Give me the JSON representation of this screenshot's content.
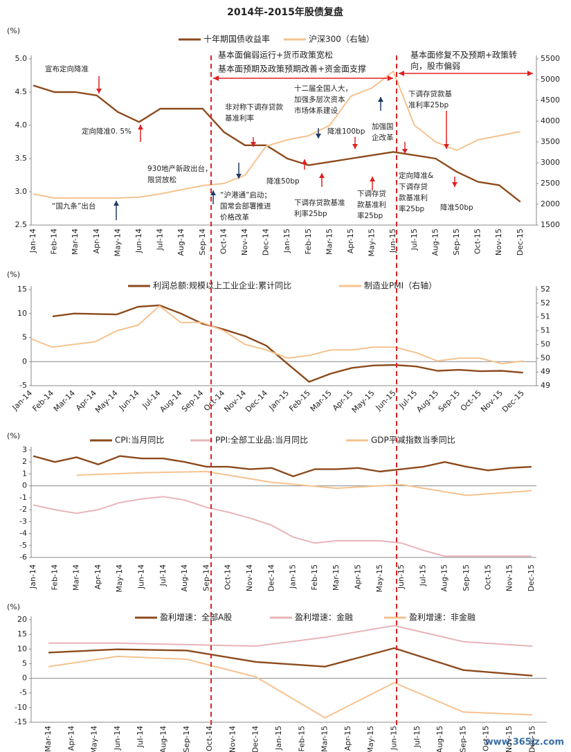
{
  "title": "2014年-2015年股债复盘",
  "watermark": "www.365jz.com",
  "chart_data": [
    {
      "type": "line",
      "y_label": "(%)",
      "categories": [
        "Jan-14",
        "Feb-14",
        "Mar-14",
        "Apr-14",
        "May-14",
        "Jun-14",
        "Jul-14",
        "Aug-14",
        "Sep-14",
        "Oct-14",
        "Nov-14",
        "Dec-14",
        "Jan-15",
        "Feb-15",
        "Mar-15",
        "Apr-15",
        "May-15",
        "Jun-15",
        "Jul-15",
        "Aug-15",
        "Sep-15",
        "Oct-15",
        "Nov-15",
        "Dec-15"
      ],
      "ylim": [
        2.5,
        5.0
      ],
      "yticks": [
        2.5,
        {
          "value": 3,
          "label": "3.0"
        },
        3.5,
        {
          "value": 4,
          "label": "4.0"
        },
        4.5,
        {
          "value": 5,
          "label": "5.0"
        }
      ],
      "y2lim": [
        1500,
        5500
      ],
      "y2ticks": [
        1500,
        2000,
        2500,
        3000,
        3500,
        4000,
        4500,
        5000,
        5500
      ],
      "series": [
        {
          "name": "十年期国债收益率",
          "color": "#8c4a1c",
          "values": [
            4.6,
            4.5,
            4.5,
            4.45,
            4.2,
            4.05,
            4.25,
            4.25,
            4.25,
            3.9,
            3.7,
            3.7,
            3.5,
            3.4,
            3.45,
            3.5,
            3.55,
            3.6,
            3.55,
            3.5,
            3.3,
            3.15,
            3.1,
            2.85
          ]
        },
        {
          "name": "沪深300（右轴）",
          "color": "#f6c28e",
          "axis": "y2",
          "values": [
            2250,
            2150,
            2150,
            2150,
            2150,
            2170,
            2250,
            2350,
            2450,
            2500,
            2700,
            3400,
            3550,
            3650,
            3900,
            4600,
            4800,
            5200,
            3900,
            3500,
            3300,
            3550,
            3650,
            3750
          ]
        }
      ],
      "annotations": [
        [
          "宣布定向降准"
        ],
        [
          "定向降准0. 5%"
        ],
        [
          "930地产新政出台，",
          "限贷放松"
        ],
        [
          "“国九条”出台"
        ],
        [
          "非对称下调存贷款",
          "基准利率"
        ],
        [
          "“沪港通”启动；",
          "国常会部署推进",
          "价格改革"
        ],
        [
          "降准50bp"
        ],
        [
          "下调存贷款基准",
          "利率25bp"
        ],
        [
          "降准100bp"
        ],
        [
          "十二届全国人大，",
          "加强多层次资本",
          "市场体系建设"
        ],
        [
          "下调存贷",
          "款基准利",
          "率25bp"
        ],
        [
          "加强国",
          "企改革"
        ],
        [
          "基本面偏弱运行+货币政策宽松"
        ],
        [
          "基本面预期及政策预期改善+资金面支撑"
        ],
        [
          "基本面修复不及预期+政策转",
          "向，股市偏弱"
        ],
        [
          "下调存贷款基",
          "准利率25bp"
        ],
        [
          "定向降准&",
          "下调存贷",
          "款基准利",
          "率25bp"
        ],
        [
          "降准50bp"
        ]
      ]
    },
    {
      "type": "line",
      "y_label": "(%)",
      "categories": [
        "Jan-14",
        "Feb-14",
        "Mar-14",
        "Apr-14",
        "May-14",
        "Jun-14",
        "Jul-14",
        "Aug-14",
        "Sep-14",
        "Oct-14",
        "Nov-14",
        "Dec-14",
        "Jan-15",
        "Feb-15",
        "Mar-15",
        "Apr-15",
        "May-15",
        "Jun-15",
        "Jul-15",
        "Aug-15",
        "Sep-15",
        "Oct-15",
        "Nov-15",
        "Dec-15"
      ],
      "ylim": [
        -5,
        15
      ],
      "yticks": [
        -5,
        0,
        5,
        10,
        15
      ],
      "y2lim": [
        48.8,
        52.3
      ],
      "y2ticks": [
        {
          "value": 48.8,
          "label": "49"
        },
        {
          "value": 49.3,
          "label": "49"
        },
        {
          "value": 49.8,
          "label": "50"
        },
        {
          "value": 50.3,
          "label": "50"
        },
        {
          "value": 50.8,
          "label": "51"
        },
        {
          "value": 51.3,
          "label": "51"
        },
        {
          "value": 51.8,
          "label": "52"
        },
        {
          "value": 52.3,
          "label": "52"
        }
      ],
      "series": [
        {
          "name": "利润总额:规模以上工业企业:累计同比",
          "color": "#8c4a1c",
          "values": [
            null,
            9.4,
            10,
            9.9,
            9.8,
            11.4,
            11.7,
            10,
            7.9,
            6.7,
            5.3,
            3.3,
            -0.5,
            -4.2,
            -2.5,
            -1.3,
            -0.8,
            -0.7,
            -1,
            -1.9,
            -1.7,
            -2,
            -1.9,
            -2.3
          ]
        },
        {
          "name": "制造业PMI（右轴）",
          "color": "#f6c28e",
          "axis": "y2",
          "values": [
            50.5,
            50.2,
            50.3,
            50.4,
            50.8,
            51,
            51.7,
            51.1,
            51.1,
            50.8,
            50.3,
            50.1,
            49.8,
            49.9,
            50.1,
            50.1,
            50.2,
            50.2,
            50,
            49.7,
            49.8,
            49.8,
            49.6,
            49.7
          ]
        }
      ]
    },
    {
      "type": "line",
      "y_label": "(%)",
      "categories": [
        "Jan-14",
        "Feb-14",
        "Mar-14",
        "Apr-14",
        "May-14",
        "Jun-14",
        "Jul-14",
        "Aug-14",
        "Sep-14",
        "Oct-14",
        "Nov-14",
        "Dec-14",
        "Jan-15",
        "Feb-15",
        "Mar-15",
        "Apr-15",
        "May-15",
        "Jun-15",
        "Jul-15",
        "Aug-15",
        "Sep-15",
        "Oct-15",
        "Nov-15",
        "Dec-15"
      ],
      "ylim": [
        -6,
        3
      ],
      "yticks": [
        -6,
        -5,
        -4,
        -3,
        -2,
        -1,
        0,
        1,
        2,
        3
      ],
      "series": [
        {
          "name": "CPI:当月同比",
          "color": "#8c4a1c",
          "values": [
            2.5,
            2.0,
            2.4,
            1.8,
            2.5,
            2.3,
            2.3,
            2.0,
            1.6,
            1.6,
            1.4,
            1.5,
            0.8,
            1.4,
            1.4,
            1.5,
            1.2,
            1.4,
            1.6,
            2.0,
            1.6,
            1.3,
            1.5,
            1.6
          ]
        },
        {
          "name": "PPI:全部工业品:当月同比",
          "color": "#e8b4b8",
          "values": [
            -1.6,
            -2.0,
            -2.3,
            -2.0,
            -1.4,
            -1.1,
            -0.9,
            -1.2,
            -1.8,
            -2.2,
            -2.7,
            -3.3,
            -4.3,
            -4.8,
            -4.6,
            -4.6,
            -4.6,
            -4.8,
            -5.4,
            -5.9,
            -5.9,
            -5.9,
            -5.9,
            -5.9
          ]
        },
        {
          "name": "GDP平减指数当季同比",
          "color": "#f6c28e",
          "x": [
            "Mar-14",
            "Jun-14",
            "Sep-14",
            "Dec-14",
            "Mar-15",
            "Jun-15",
            "Sep-15",
            "Dec-15"
          ],
          "values": [
            0.9,
            1.1,
            1.2,
            0.3,
            -0.2,
            0.1,
            -0.8,
            -0.4
          ]
        }
      ]
    },
    {
      "type": "line",
      "y_label": "(%)",
      "categories": [
        "Mar-14",
        "Apr-14",
        "May-14",
        "Jun-14",
        "Jul-14",
        "Aug-14",
        "Sep-14",
        "Oct-14",
        "Nov-14",
        "Dec-14",
        "Jan-15",
        "Feb-15",
        "Mar-15",
        "Apr-15",
        "May-15",
        "Jun-15",
        "Jul-15",
        "Aug-15",
        "Sep-15",
        "Oct-15",
        "Nov-15",
        "Dec-15"
      ],
      "ylim": [
        -15,
        20
      ],
      "yticks": [
        -15,
        -10,
        -5,
        0,
        5,
        10,
        15,
        20
      ],
      "series": [
        {
          "name": "盈利增速：全部A股",
          "color": "#8c4a1c",
          "x": [
            "Mar-14",
            "Jun-14",
            "Sep-14",
            "Dec-14",
            "Mar-15",
            "Jun-15",
            "Sep-15",
            "Dec-15"
          ],
          "values": [
            8.8,
            9.9,
            9.5,
            5.6,
            4.0,
            10.3,
            2.8,
            0.9
          ]
        },
        {
          "name": "盈利增速：金融",
          "color": "#e8b4b8",
          "x": [
            "Mar-14",
            "Jun-14",
            "Sep-14",
            "Dec-14",
            "Mar-15",
            "Jun-15",
            "Sep-15",
            "Dec-15"
          ],
          "values": [
            12,
            12,
            11.5,
            11,
            14,
            18,
            12.5,
            11
          ]
        },
        {
          "name": "盈利增速：非金融",
          "color": "#f6c28e",
          "x": [
            "Mar-14",
            "Jun-14",
            "Sep-14",
            "Dec-14",
            "Mar-15",
            "Jun-15",
            "Sep-15",
            "Dec-15"
          ],
          "values": [
            4,
            7.5,
            6.5,
            0.5,
            -13.5,
            -1.5,
            -11.5,
            -12.5
          ]
        }
      ]
    }
  ]
}
